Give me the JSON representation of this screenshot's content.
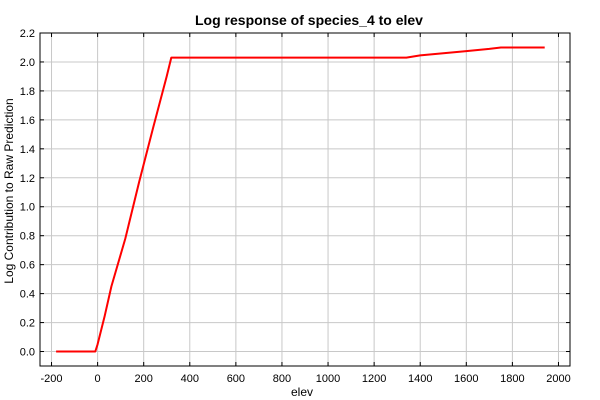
{
  "chart_data": {
    "type": "line",
    "title": "Log response of species_4 to elev",
    "xlabel": "elev",
    "ylabel": "Log Contribution to Raw Prediction",
    "xlim": [
      -250,
      2050
    ],
    "ylim": [
      -0.1,
      2.2
    ],
    "xticks": [
      -200,
      0,
      200,
      400,
      600,
      800,
      1000,
      1200,
      1400,
      1600,
      1800,
      2000
    ],
    "yticks": [
      0.0,
      0.2,
      0.4,
      0.6,
      0.8,
      1.0,
      1.2,
      1.4,
      1.6,
      1.8,
      2.0,
      2.2
    ],
    "xtick_labels": [
      "-200",
      "0",
      "200",
      "400",
      "600",
      "800",
      "1000",
      "1200",
      "1400",
      "1600",
      "1800",
      "2000"
    ],
    "ytick_labels": [
      "0.0",
      "0.2",
      "0.4",
      "0.6",
      "0.8",
      "1.0",
      "1.2",
      "1.4",
      "1.6",
      "1.8",
      "2.0",
      "2.2"
    ],
    "grid": true,
    "series": [
      {
        "color": "#ff0000",
        "x": [
          -180,
          -10,
          0,
          30,
          60,
          120,
          180,
          240,
          300,
          320,
          400,
          600,
          800,
          1000,
          1200,
          1340,
          1400,
          1500,
          1600,
          1700,
          1750,
          1800,
          1900,
          1940
        ],
        "y": [
          0.0,
          0.0,
          0.05,
          0.24,
          0.45,
          0.78,
          1.17,
          1.54,
          1.9,
          2.03,
          2.03,
          2.03,
          2.03,
          2.03,
          2.03,
          2.03,
          2.045,
          2.06,
          2.075,
          2.09,
          2.1,
          2.1,
          2.1,
          2.1
        ]
      }
    ]
  }
}
